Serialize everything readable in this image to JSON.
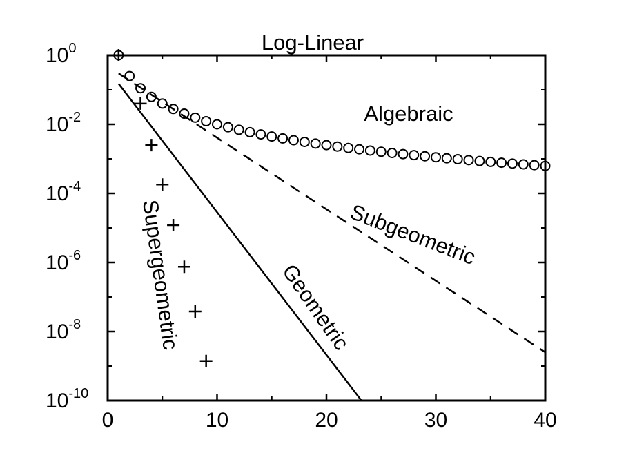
{
  "chart_data": {
    "type": "line",
    "title": "Log-Linear",
    "xlabel": "",
    "ylabel": "",
    "xlim": [
      0,
      40
    ],
    "ylim": [
      1e-10,
      1
    ],
    "yscale": "log",
    "grid": false,
    "x_ticks": [
      "0",
      "10",
      "20",
      "30",
      "40"
    ],
    "y_ticks": [
      {
        "base": "10",
        "exp": "0"
      },
      {
        "base": "10",
        "exp": "-2"
      },
      {
        "base": "10",
        "exp": "-4"
      },
      {
        "base": "10",
        "exp": "-6"
      },
      {
        "base": "10",
        "exp": "-8"
      },
      {
        "base": "10",
        "exp": "-10"
      }
    ],
    "series": [
      {
        "label": "Algebraic",
        "style": "circles",
        "x": [
          1,
          2,
          3,
          4,
          5,
          6,
          7,
          8,
          9,
          10,
          11,
          12,
          13,
          14,
          15,
          16,
          17,
          18,
          19,
          20,
          21,
          22,
          23,
          24,
          25,
          26,
          27,
          28,
          29,
          30,
          31,
          32,
          33,
          34,
          35,
          36,
          37,
          38,
          39,
          40
        ],
        "y": [
          1,
          0.25,
          0.111,
          0.0625,
          0.04,
          0.0278,
          0.0204,
          0.0156,
          0.0123,
          0.01,
          0.00826,
          0.00694,
          0.00592,
          0.0051,
          0.00444,
          0.00391,
          0.00346,
          0.00309,
          0.00277,
          0.0025,
          0.00227,
          0.00207,
          0.00189,
          0.00174,
          0.0016,
          0.00148,
          0.00137,
          0.00128,
          0.00119,
          0.00111,
          0.00104,
          0.000977,
          0.000918,
          0.000865,
          0.000816,
          0.000772,
          0.00073,
          0.000693,
          0.000657,
          0.000625
        ]
      },
      {
        "label": "Subgeometric",
        "style": "dashed",
        "x": [
          1,
          40
        ],
        "y": [
          0.3,
          2.5e-09
        ]
      },
      {
        "label": "Geometric",
        "style": "solid",
        "x": [
          1,
          23.2
        ],
        "y": [
          0.15,
          1e-10
        ]
      },
      {
        "label": "Supergeometric",
        "style": "plus",
        "x": [
          1,
          3,
          4,
          5,
          6,
          7,
          8,
          9
        ],
        "y": [
          1,
          0.04,
          0.0025,
          0.00018,
          1.2e-05,
          7.5e-07,
          3.8e-08,
          1.4e-09
        ]
      }
    ]
  }
}
